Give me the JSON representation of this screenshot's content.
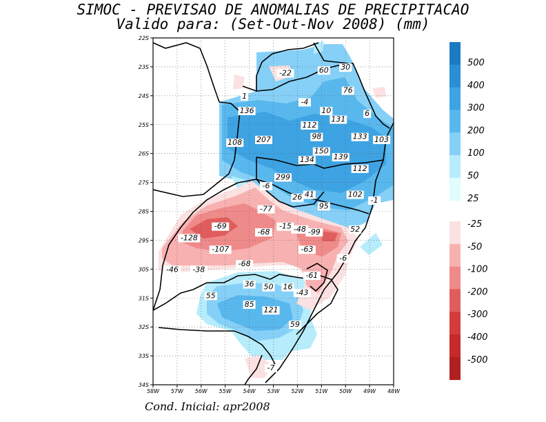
{
  "title": {
    "line1": "SIMOC - PREVISAO DE ANOMALIAS DE PRECIPITACAO",
    "line2": "Valido para: (Set-Out-Nov 2008) (mm)"
  },
  "footer": "Cond. Inicial: apr2008",
  "map": {
    "lon_range": [
      -58,
      -48
    ],
    "lat_range": [
      -34,
      -22
    ],
    "lon_ticks": [
      "58W",
      "57W",
      "56W",
      "55W",
      "54W",
      "53W",
      "52W",
      "51W",
      "50W",
      "49W",
      "48W"
    ],
    "lat_ticks": [
      "22S",
      "23S",
      "24S",
      "25S",
      "26S",
      "27S",
      "28S",
      "29S",
      "30S",
      "31S",
      "32S",
      "33S",
      "34S"
    ],
    "anomaly_labels": [
      {
        "text": "-22",
        "lon": -52.5,
        "lat": -23.3
      },
      {
        "text": "60",
        "lon": -50.9,
        "lat": -23.2
      },
      {
        "text": "30",
        "lon": -50.0,
        "lat": -23.1
      },
      {
        "text": "76",
        "lon": -49.9,
        "lat": -23.9
      },
      {
        "text": "1",
        "lon": -54.2,
        "lat": -24.1
      },
      {
        "text": "-4",
        "lon": -51.7,
        "lat": -24.3
      },
      {
        "text": "6",
        "lon": -49.1,
        "lat": -24.7
      },
      {
        "text": "136",
        "lon": -54.1,
        "lat": -24.6
      },
      {
        "text": "10",
        "lon": -50.8,
        "lat": -24.6
      },
      {
        "text": "131",
        "lon": -50.3,
        "lat": -24.9
      },
      {
        "text": "112",
        "lon": -51.5,
        "lat": -25.1
      },
      {
        "text": "98",
        "lon": -51.2,
        "lat": -25.5
      },
      {
        "text": "207",
        "lon": -53.4,
        "lat": -25.6
      },
      {
        "text": "133",
        "lon": -49.4,
        "lat": -25.5
      },
      {
        "text": "103",
        "lon": -48.5,
        "lat": -25.6
      },
      {
        "text": "108",
        "lon": -54.6,
        "lat": -25.7
      },
      {
        "text": "150",
        "lon": -51.0,
        "lat": -26.0
      },
      {
        "text": "139",
        "lon": -50.2,
        "lat": -26.2
      },
      {
        "text": "134",
        "lon": -51.6,
        "lat": -26.3
      },
      {
        "text": "112",
        "lon": -49.4,
        "lat": -26.6
      },
      {
        "text": "299",
        "lon": -52.6,
        "lat": -26.9
      },
      {
        "text": "-6",
        "lon": -53.3,
        "lat": -27.2
      },
      {
        "text": "26",
        "lon": -52.0,
        "lat": -27.6
      },
      {
        "text": "41",
        "lon": -51.5,
        "lat": -27.5
      },
      {
        "text": "102",
        "lon": -49.6,
        "lat": -27.5
      },
      {
        "text": "-1",
        "lon": -48.8,
        "lat": -27.7
      },
      {
        "text": "95",
        "lon": -50.9,
        "lat": -27.9
      },
      {
        "text": "-77",
        "lon": -53.3,
        "lat": -28.0
      },
      {
        "text": "-69",
        "lon": -55.2,
        "lat": -28.6
      },
      {
        "text": "-68",
        "lon": -53.4,
        "lat": -28.8
      },
      {
        "text": "-15",
        "lon": -52.5,
        "lat": -28.6
      },
      {
        "text": "-48",
        "lon": -51.9,
        "lat": -28.7
      },
      {
        "text": "-99",
        "lon": -51.3,
        "lat": -28.8
      },
      {
        "text": "52",
        "lon": -49.6,
        "lat": -28.7
      },
      {
        "text": "-128",
        "lon": -56.5,
        "lat": -29.0
      },
      {
        "text": "-107",
        "lon": -55.2,
        "lat": -29.4
      },
      {
        "text": "-63",
        "lon": -51.6,
        "lat": -29.4
      },
      {
        "text": "-6",
        "lon": -50.1,
        "lat": -29.7
      },
      {
        "text": "-68",
        "lon": -54.2,
        "lat": -29.9
      },
      {
        "text": "-46",
        "lon": -57.2,
        "lat": -30.1
      },
      {
        "text": "-38",
        "lon": -56.1,
        "lat": -30.1
      },
      {
        "text": "-61",
        "lon": -51.4,
        "lat": -30.3
      },
      {
        "text": "36",
        "lon": -54.0,
        "lat": -30.6
      },
      {
        "text": "50",
        "lon": -53.2,
        "lat": -30.7
      },
      {
        "text": "16",
        "lon": -52.4,
        "lat": -30.7
      },
      {
        "text": "55",
        "lon": -55.6,
        "lat": -31.0
      },
      {
        "text": "-43",
        "lon": -51.8,
        "lat": -30.9
      },
      {
        "text": "85",
        "lon": -54.0,
        "lat": -31.3
      },
      {
        "text": "121",
        "lon": -53.1,
        "lat": -31.5
      },
      {
        "text": "59",
        "lon": -52.1,
        "lat": -32.0
      },
      {
        "text": "-7",
        "lon": -53.1,
        "lat": -33.5
      }
    ]
  },
  "colorbar": {
    "positive": {
      "colors": [
        "#1c7ac0",
        "#2a8ed2",
        "#3ea3e2",
        "#58b8ee",
        "#86d0f7",
        "#b6ecfb",
        "#e0fcfd"
      ],
      "labels": [
        "500",
        "400",
        "300",
        "200",
        "100",
        "50",
        "25"
      ]
    },
    "negative": {
      "colors": [
        "#fbe1e1",
        "#f7b1b1",
        "#ef8a8a",
        "#e05d5d",
        "#d43b3b",
        "#c62a2a",
        "#b02020"
      ],
      "labels": [
        "-25",
        "-50",
        "-100",
        "-200",
        "-300",
        "-400",
        "-500"
      ]
    }
  },
  "colors": {
    "blue_strong": "#3ea3e2",
    "blue_mid": "#58b8ee",
    "blue_light": "#86d0f7",
    "cyan_light": "#b6ecfb",
    "red_light": "#fbe1e1",
    "red_mid": "#f7b1b1",
    "red_strong": "#ef8a8a",
    "red_darker": "#e05d5d"
  }
}
